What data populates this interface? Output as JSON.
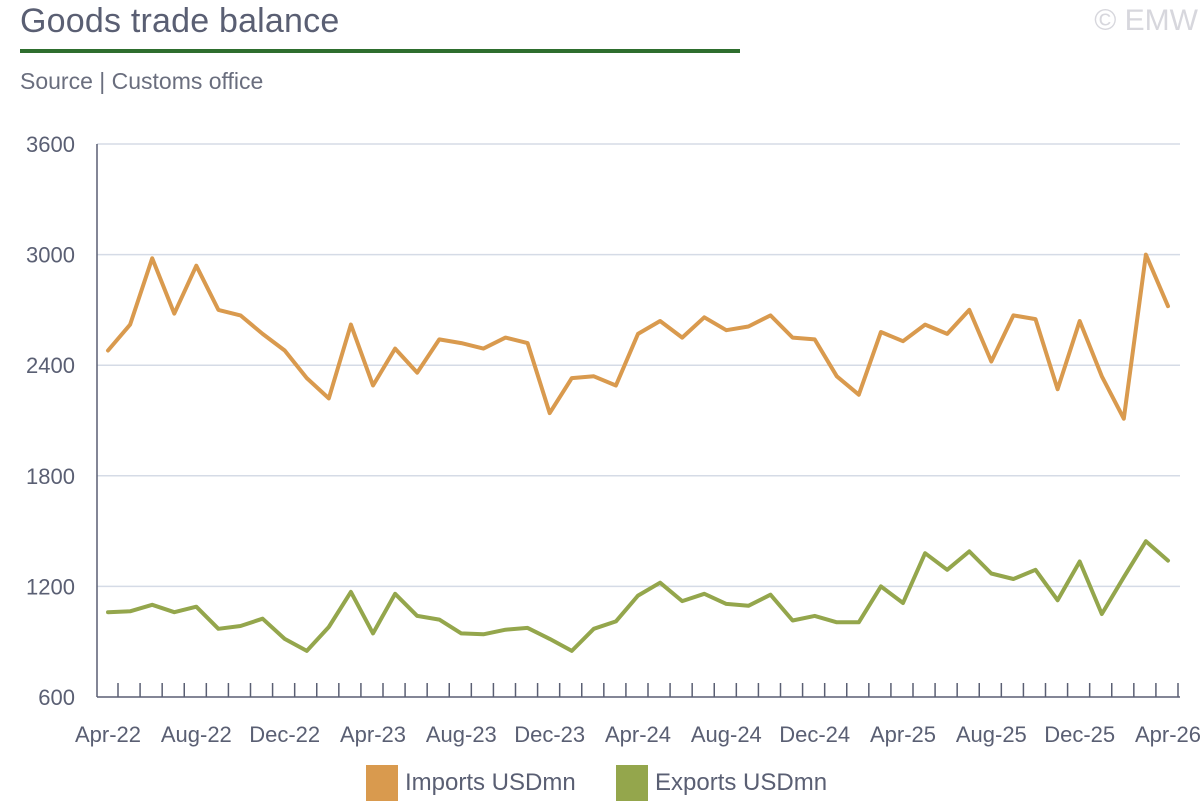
{
  "header": {
    "title": "Goods trade balance",
    "copyright": "© EMW",
    "subtitle": "Source | Customs office",
    "rule_color": "#2e6e2e"
  },
  "chart_data": {
    "type": "line",
    "title": "Goods trade balance",
    "subtitle": "Source | Customs office",
    "xlabel": "",
    "ylabel": "",
    "ylim": [
      600,
      3600
    ],
    "yticks": [
      600,
      1200,
      1800,
      2400,
      3000,
      3600
    ],
    "grid": true,
    "legend": "bottom",
    "x": [
      "Apr-22",
      "May-22",
      "Jun-22",
      "Jul-22",
      "Aug-22",
      "Sep-22",
      "Oct-22",
      "Nov-22",
      "Dec-22",
      "Jan-23",
      "Feb-23",
      "Mar-23",
      "Apr-23",
      "May-23",
      "Jun-23",
      "Jul-23",
      "Aug-23",
      "Sep-23",
      "Oct-23",
      "Nov-23",
      "Dec-23",
      "Jan-24",
      "Feb-24",
      "Mar-24",
      "Apr-24",
      "May-24",
      "Jun-24",
      "Jul-24",
      "Aug-24",
      "Sep-24",
      "Oct-24",
      "Nov-24",
      "Dec-24",
      "Jan-25",
      "Feb-25",
      "Mar-25",
      "Apr-25",
      "May-25",
      "Jun-25",
      "Jul-25",
      "Aug-25",
      "Sep-25",
      "Oct-25",
      "Nov-25",
      "Dec-25",
      "Jan-26",
      "Feb-26",
      "Mar-26",
      "Apr-26"
    ],
    "xtick_labels": [
      "Apr-22",
      "Aug-22",
      "Dec-22",
      "Apr-23",
      "Aug-23",
      "Dec-23",
      "Apr-24",
      "Aug-24",
      "Dec-24",
      "Apr-25",
      "Aug-25",
      "Dec-25",
      "Apr-26"
    ],
    "series": [
      {
        "name": "Imports USDmn",
        "color": "#d99a4e",
        "values": [
          2480,
          2620,
          2980,
          2680,
          2940,
          2700,
          2670,
          2570,
          2480,
          2330,
          2220,
          2620,
          2290,
          2490,
          2360,
          2540,
          2520,
          2490,
          2550,
          2520,
          2140,
          2330,
          2340,
          2290,
          2570,
          2640,
          2550,
          2660,
          2590,
          2610,
          2670,
          2550,
          2540,
          2340,
          2240,
          2580,
          2530,
          2620,
          2570,
          2700,
          2420,
          2670,
          2650,
          2270,
          2640,
          2340,
          2110,
          3000,
          2720
        ]
      },
      {
        "name": "Exports USDmn",
        "color": "#94a64c",
        "values": [
          1060,
          1065,
          1100,
          1060,
          1090,
          970,
          985,
          1025,
          915,
          850,
          980,
          1170,
          945,
          1160,
          1040,
          1020,
          945,
          940,
          965,
          975,
          915,
          850,
          970,
          1010,
          1150,
          1220,
          1120,
          1160,
          1105,
          1095,
          1155,
          1015,
          1040,
          1005,
          1005,
          1200,
          1110,
          1380,
          1290,
          1390,
          1270,
          1240,
          1290,
          1125,
          1335,
          1050,
          1250,
          1445,
          1340
        ]
      }
    ]
  }
}
